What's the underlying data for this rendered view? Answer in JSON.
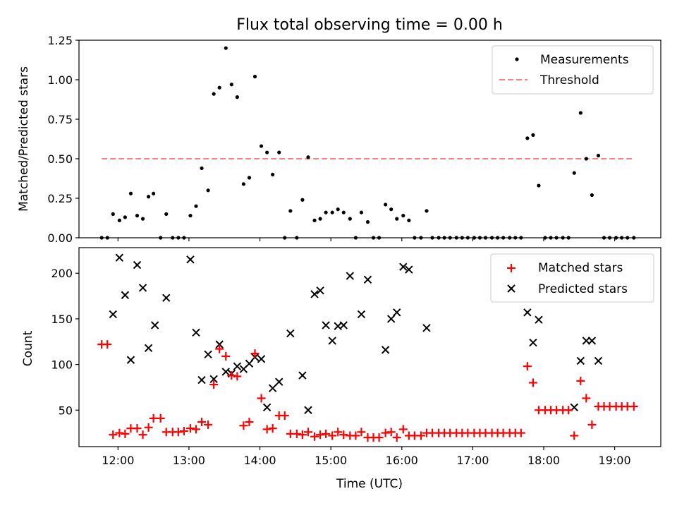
{
  "chart_data": [
    {
      "type": "scatter",
      "title": "Flux total observing time = 0.00 h",
      "xlabel": "",
      "ylabel": "Matched/Predicted stars",
      "xlim": [
        11.45,
        19.65
      ],
      "ylim": [
        0,
        1.25
      ],
      "yticks": [
        0,
        0.25,
        0.5,
        0.75,
        1.0,
        1.25
      ],
      "ytick_labels": [
        "0.00",
        "0.25",
        "0.50",
        "0.75",
        "1.00",
        "1.25"
      ],
      "xticks": [
        12,
        13,
        14,
        15,
        16,
        17,
        18,
        19
      ],
      "grid": false,
      "legend_position": "top-right",
      "series": [
        {
          "name": "Measurements",
          "color": "#000000",
          "marker": "dot",
          "x": [
            11.77,
            11.85,
            11.93,
            12.02,
            12.1,
            12.18,
            12.27,
            12.35,
            12.43,
            12.5,
            12.6,
            12.68,
            12.77,
            12.85,
            12.93,
            13.02,
            13.1,
            13.18,
            13.27,
            13.35,
            13.43,
            13.52,
            13.6,
            13.68,
            13.77,
            13.85,
            13.93,
            14.02,
            14.1,
            14.18,
            14.27,
            14.35,
            14.43,
            14.52,
            14.6,
            14.68,
            14.77,
            14.85,
            14.93,
            15.02,
            15.1,
            15.18,
            15.27,
            15.35,
            15.43,
            15.52,
            15.6,
            15.68,
            15.77,
            15.85,
            15.93,
            16.02,
            16.1,
            16.18,
            16.27,
            16.35,
            16.43,
            16.52,
            16.6,
            16.68,
            16.77,
            16.85,
            16.93,
            17.02,
            17.1,
            17.18,
            17.27,
            17.35,
            17.43,
            17.52,
            17.6,
            17.68,
            17.77,
            17.85,
            17.93,
            18.02,
            18.1,
            18.18,
            18.27,
            18.35,
            18.43,
            18.52,
            18.6,
            18.68,
            18.77,
            18.85,
            18.93,
            19.02,
            19.1,
            19.18,
            19.27
          ],
          "y": [
            0.0,
            0.0,
            0.15,
            0.11,
            0.13,
            0.28,
            0.14,
            0.12,
            0.26,
            0.28,
            0.0,
            0.15,
            0.0,
            0.0,
            0.0,
            0.14,
            0.2,
            0.44,
            0.3,
            0.91,
            0.95,
            1.2,
            0.97,
            0.89,
            0.34,
            0.38,
            1.02,
            0.58,
            0.54,
            0.4,
            0.54,
            0.0,
            0.17,
            0.0,
            0.24,
            0.51,
            0.11,
            0.12,
            0.16,
            0.16,
            0.18,
            0.16,
            0.12,
            0.0,
            0.16,
            0.1,
            0.0,
            0.0,
            0.21,
            0.18,
            0.12,
            0.14,
            0.11,
            0.0,
            0.0,
            0.17,
            0.0,
            0.0,
            0.0,
            0.0,
            0.0,
            0.0,
            0.0,
            0.0,
            0.0,
            0.0,
            0.0,
            0.0,
            0.0,
            0.0,
            0.0,
            0.0,
            0.63,
            0.65,
            0.33,
            0.0,
            0.0,
            0.0,
            0.0,
            0.0,
            0.41,
            0.79,
            0.5,
            0.27,
            0.52,
            0.0,
            0.0,
            0.0,
            0.0,
            0.0,
            0.0
          ]
        },
        {
          "name": "Threshold",
          "color": "#ff8080",
          "style": "dashed",
          "x": [
            11.77,
            19.27
          ],
          "y": [
            0.5,
            0.5
          ]
        }
      ]
    },
    {
      "type": "scatter",
      "title": "",
      "xlabel": "Time (UTC)",
      "ylabel": "Count",
      "xlim": [
        11.45,
        19.65
      ],
      "ylim": [
        10,
        228
      ],
      "yticks": [
        50,
        100,
        150,
        200
      ],
      "ytick_labels": [
        "50",
        "100",
        "150",
        "200"
      ],
      "xticks": [
        12,
        13,
        14,
        15,
        16,
        17,
        18,
        19
      ],
      "xtick_labels": [
        "12:00",
        "13:00",
        "14:00",
        "15:00",
        "16:00",
        "17:00",
        "18:00",
        "19:00"
      ],
      "grid": false,
      "legend_position": "top-right",
      "series": [
        {
          "name": "Matched stars",
          "color": "#ff0000",
          "marker": "plus",
          "x": [
            11.77,
            11.85,
            11.93,
            12.02,
            12.1,
            12.18,
            12.27,
            12.35,
            12.43,
            12.5,
            12.6,
            12.68,
            12.77,
            12.85,
            12.93,
            13.02,
            13.1,
            13.18,
            13.27,
            13.35,
            13.43,
            13.52,
            13.6,
            13.68,
            13.77,
            13.85,
            13.93,
            14.02,
            14.1,
            14.18,
            14.27,
            14.35,
            14.43,
            14.52,
            14.6,
            14.68,
            14.77,
            14.85,
            14.93,
            15.02,
            15.1,
            15.18,
            15.27,
            15.35,
            15.43,
            15.52,
            15.6,
            15.68,
            15.77,
            15.85,
            15.93,
            16.02,
            16.1,
            16.18,
            16.27,
            16.35,
            16.43,
            16.52,
            16.6,
            16.68,
            16.77,
            16.85,
            16.93,
            17.02,
            17.1,
            17.18,
            17.27,
            17.35,
            17.43,
            17.52,
            17.6,
            17.68,
            17.77,
            17.85,
            17.93,
            18.02,
            18.1,
            18.18,
            18.27,
            18.35,
            18.43,
            18.52,
            18.6,
            18.68,
            18.77,
            18.85,
            18.93,
            19.02,
            19.1,
            19.18,
            19.27
          ],
          "y": [
            122,
            122,
            23,
            25,
            24,
            30,
            30,
            23,
            31,
            41,
            41,
            26,
            26,
            26,
            27,
            30,
            29,
            37,
            34,
            78,
            117,
            109,
            88,
            87,
            33,
            37,
            112,
            63,
            29,
            30,
            44,
            44,
            24,
            24,
            23,
            26,
            21,
            23,
            24,
            22,
            26,
            23,
            22,
            22,
            26,
            20,
            20,
            20,
            25,
            26,
            20,
            29,
            22,
            22,
            22,
            25,
            25,
            25,
            25,
            25,
            25,
            25,
            25,
            25,
            25,
            25,
            25,
            25,
            25,
            25,
            25,
            25,
            98,
            80,
            50,
            50,
            50,
            50,
            50,
            50,
            22,
            82,
            63,
            34,
            54,
            54,
            54,
            54,
            54,
            54,
            54
          ]
        },
        {
          "name": "Predicted stars",
          "color": "#000000",
          "marker": "x",
          "x": [
            11.93,
            12.02,
            12.1,
            12.18,
            12.27,
            12.35,
            12.43,
            12.52,
            12.68,
            13.02,
            13.1,
            13.18,
            13.27,
            13.35,
            13.43,
            13.52,
            13.6,
            13.68,
            13.77,
            13.85,
            13.93,
            14.02,
            14.1,
            14.18,
            14.27,
            14.43,
            14.6,
            14.68,
            14.77,
            14.85,
            14.93,
            15.02,
            15.1,
            15.18,
            15.27,
            15.43,
            15.52,
            15.77,
            15.85,
            15.93,
            16.02,
            16.1,
            16.35,
            17.77,
            17.85,
            17.93,
            18.43,
            18.52,
            18.6,
            18.68,
            18.77
          ],
          "y": [
            155,
            217,
            176,
            105,
            209,
            184,
            118,
            143,
            173,
            215,
            135,
            83,
            111,
            84,
            122,
            92,
            90,
            98,
            95,
            101,
            108,
            106,
            53,
            74,
            81,
            134,
            88,
            50,
            177,
            181,
            143,
            126,
            142,
            143,
            197,
            155,
            193,
            116,
            150,
            157,
            207,
            204,
            140,
            157,
            124,
            149,
            53,
            104,
            126,
            126,
            104
          ]
        }
      ]
    }
  ]
}
